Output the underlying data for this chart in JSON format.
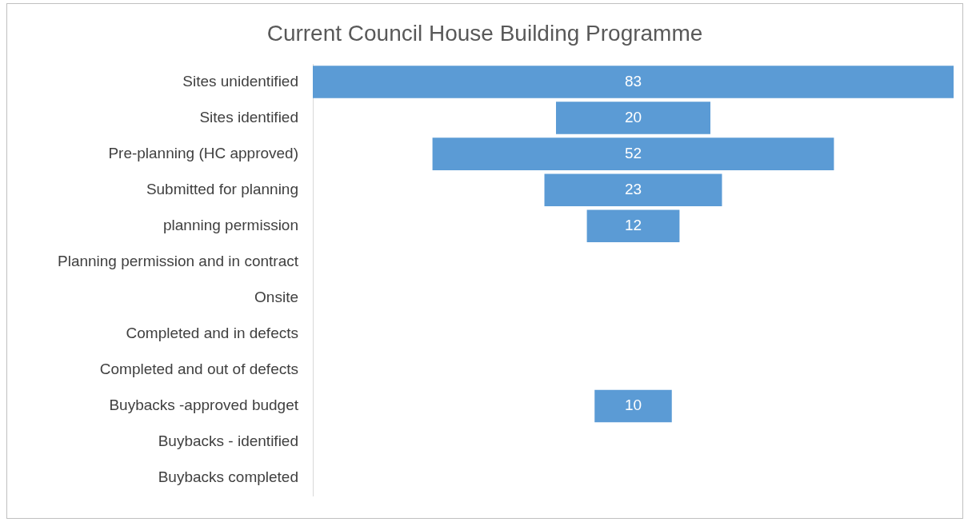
{
  "chart_data": {
    "type": "other",
    "title": "Current Council House Building Programme",
    "categories": [
      "Sites unidentified",
      "Sites identified",
      "Pre-planning (HC approved)",
      "Submitted for planning",
      "planning permission",
      "Planning permission and in contract",
      "Onsite",
      "Completed and in defects",
      "Completed and out of defects",
      "Buybacks -approved budget",
      "Buybacks - identified",
      "Buybacks completed"
    ],
    "values": [
      83,
      20,
      52,
      23,
      12,
      null,
      null,
      null,
      null,
      10,
      null,
      null
    ],
    "color": "#5b9bd5",
    "data_labels": true
  }
}
